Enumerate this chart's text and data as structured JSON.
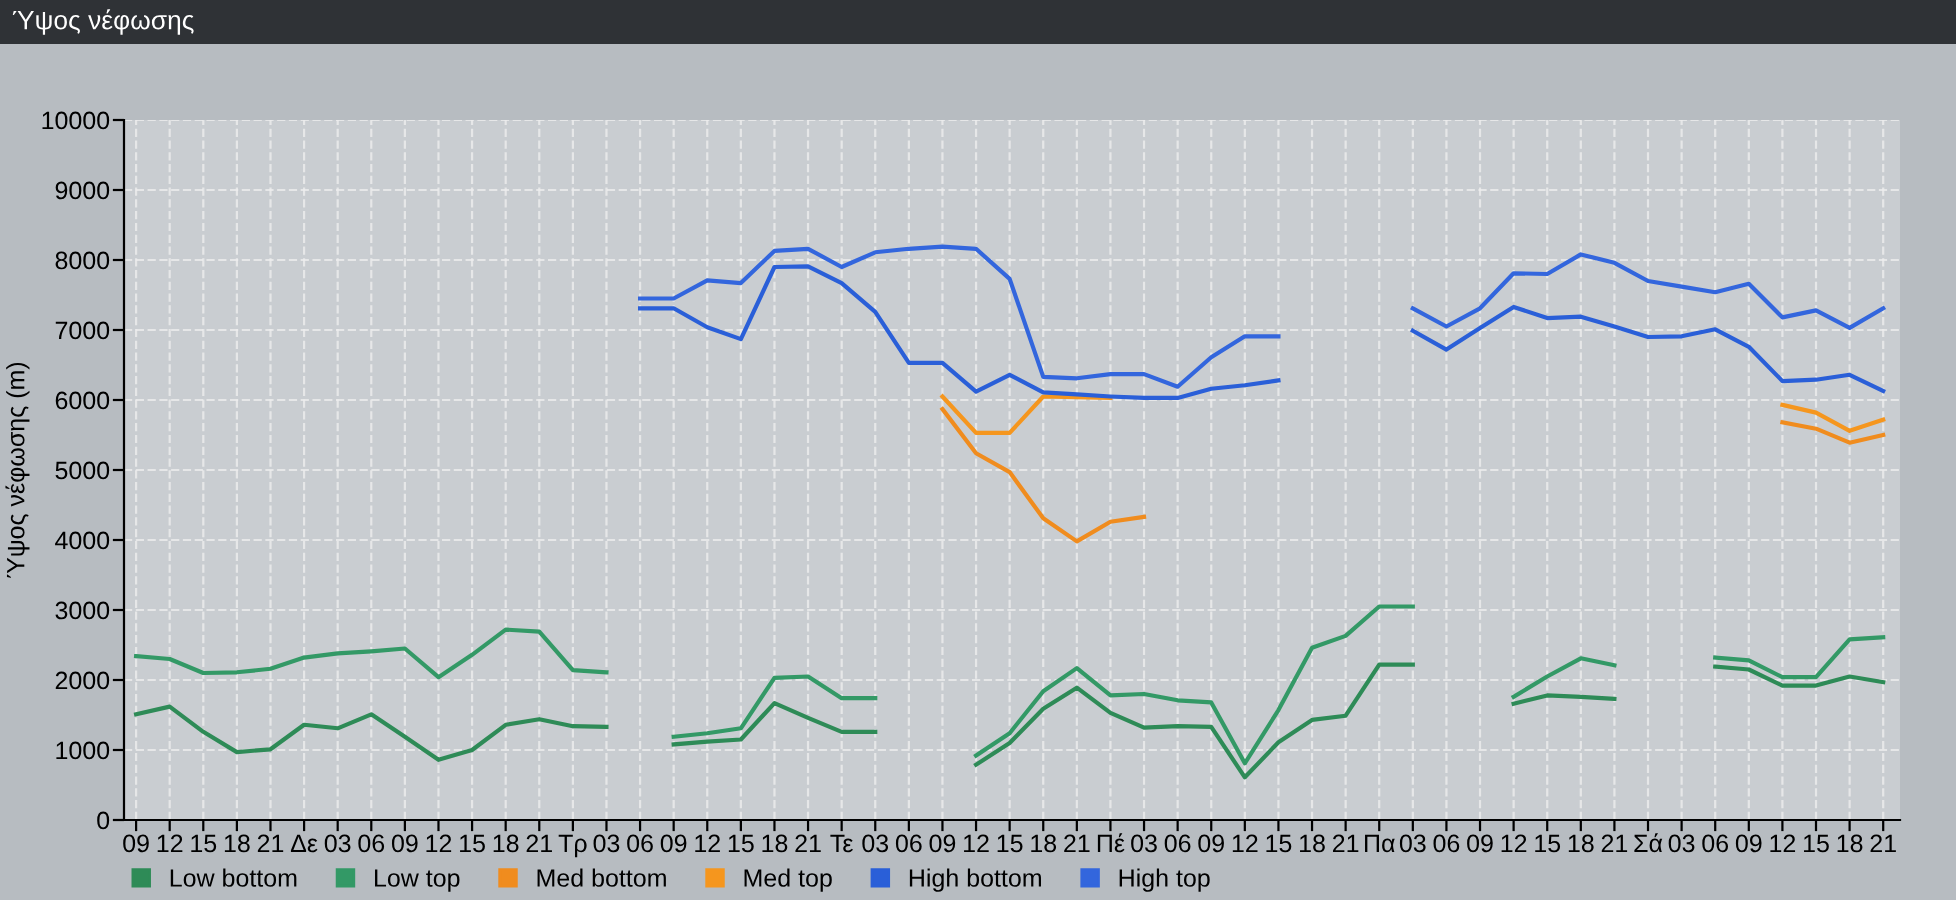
{
  "chart_data": {
    "type": "line",
    "title": "Ύψος νέφωσης",
    "ylabel": "Ύψος νέφωσης (m)",
    "categories": [
      "09",
      "12",
      "15",
      "18",
      "21",
      "Δε",
      "03",
      "06",
      "09",
      "12",
      "15",
      "18",
      "21",
      "Τρ",
      "03",
      "06",
      "09",
      "12",
      "15",
      "18",
      "21",
      "Τε",
      "03",
      "06",
      "09",
      "12",
      "15",
      "18",
      "21",
      "Πέ",
      "03",
      "06",
      "09",
      "12",
      "15",
      "18",
      "21",
      "Πα",
      "03",
      "06",
      "09",
      "12",
      "15",
      "18",
      "21",
      "Σά",
      "03",
      "06",
      "09",
      "12",
      "15",
      "18",
      "21"
    ],
    "ylim": [
      0,
      10000
    ],
    "yticks": [
      0,
      1000,
      2000,
      3000,
      4000,
      5000,
      6000,
      7000,
      8000,
      9000,
      10000
    ],
    "grid": true,
    "legend": "bottom",
    "marker": "none",
    "line_style": "solid",
    "series": [
      {
        "name": "Low bottom",
        "color": "#2e8b57",
        "values": [
          1510,
          1620,
          1260,
          970,
          1010,
          1360,
          1310,
          1510,
          1190,
          860,
          1000,
          1360,
          1440,
          1340,
          1330,
          null,
          1080,
          1120,
          1150,
          1670,
          1460,
          1260,
          1260,
          null,
          null,
          790,
          1100,
          1590,
          1890,
          1530,
          1320,
          1340,
          1330,
          610,
          1110,
          1430,
          1490,
          2220,
          2220,
          null,
          null,
          1660,
          1780,
          1760,
          1730,
          null,
          null,
          2190,
          2150,
          1920,
          1920,
          2050,
          1970
        ]
      },
      {
        "name": "Low top",
        "color": "#339966",
        "values": [
          2340,
          2300,
          2100,
          2110,
          2160,
          2320,
          2380,
          2410,
          2450,
          2040,
          2360,
          2720,
          2690,
          2140,
          2110,
          null,
          1190,
          1240,
          1310,
          2030,
          2050,
          1740,
          1740,
          null,
          null,
          920,
          1240,
          1840,
          2170,
          1780,
          1800,
          1710,
          1680,
          810,
          1570,
          2460,
          2630,
          3050,
          3050,
          null,
          null,
          1760,
          2050,
          2310,
          2210,
          null,
          null,
          2320,
          2280,
          2040,
          2040,
          2580,
          2610
        ]
      },
      {
        "name": "Med bottom",
        "color": "#f08c1e",
        "values": [
          null,
          null,
          null,
          null,
          null,
          null,
          null,
          null,
          null,
          null,
          null,
          null,
          null,
          null,
          null,
          null,
          null,
          null,
          null,
          null,
          null,
          null,
          null,
          null,
          5870,
          5240,
          4970,
          4310,
          3980,
          4260,
          4330,
          null,
          null,
          null,
          null,
          null,
          null,
          null,
          null,
          null,
          null,
          null,
          null,
          null,
          null,
          null,
          null,
          null,
          null,
          5680,
          5590,
          5390,
          5500
        ]
      },
      {
        "name": "Med top",
        "color": "#f5961e",
        "values": [
          null,
          null,
          null,
          null,
          null,
          null,
          null,
          null,
          null,
          null,
          null,
          null,
          null,
          null,
          null,
          null,
          null,
          null,
          null,
          null,
          null,
          null,
          null,
          null,
          6050,
          5530,
          5530,
          6050,
          6040,
          6030,
          null,
          null,
          null,
          null,
          null,
          null,
          null,
          null,
          null,
          null,
          null,
          null,
          null,
          null,
          null,
          null,
          null,
          null,
          null,
          5930,
          5820,
          5560,
          5720
        ]
      },
      {
        "name": "High bottom",
        "color": "#2a5fd8",
        "values": [
          null,
          null,
          null,
          null,
          null,
          null,
          null,
          null,
          null,
          null,
          null,
          null,
          null,
          null,
          null,
          7310,
          7310,
          7040,
          6870,
          7900,
          7910,
          7670,
          7260,
          6530,
          6530,
          6120,
          6360,
          6110,
          6080,
          6050,
          6030,
          6030,
          6160,
          6210,
          6280,
          null,
          null,
          null,
          6990,
          6720,
          7030,
          7330,
          7170,
          7190,
          7050,
          6900,
          6910,
          7010,
          6760,
          6270,
          6290,
          6360,
          6130
        ]
      },
      {
        "name": "High top",
        "color": "#3366dd",
        "values": [
          null,
          null,
          null,
          null,
          null,
          null,
          null,
          null,
          null,
          null,
          null,
          null,
          null,
          null,
          null,
          7450,
          7450,
          7710,
          7670,
          8130,
          8160,
          7900,
          8110,
          8160,
          8190,
          8160,
          7730,
          6330,
          6310,
          6370,
          6370,
          6190,
          6610,
          6910,
          6910,
          null,
          null,
          null,
          7310,
          7050,
          7310,
          7810,
          7800,
          8080,
          7960,
          7700,
          7620,
          7540,
          7660,
          7180,
          7280,
          7030,
          7310
        ]
      }
    ]
  }
}
